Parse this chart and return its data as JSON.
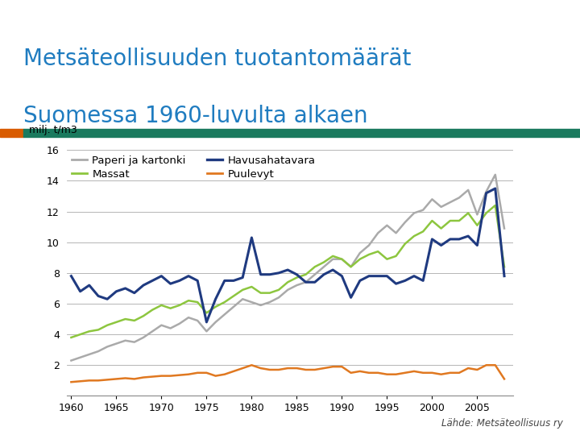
{
  "title_line1": "Metsäteollisuuden tuotantomäärät",
  "title_line2": "Suomessa 1960-luvulta alkaen",
  "title_color": "#1F7CC0",
  "ylabel": "milj. t/m3",
  "source": "Lähde: Metsäteollisuus ry",
  "orange_bar_width": 0.045,
  "teal_color": "#1A7A5E",
  "orange_color": "#D95B00",
  "years": [
    1960,
    1961,
    1962,
    1963,
    1964,
    1965,
    1966,
    1967,
    1968,
    1969,
    1970,
    1971,
    1972,
    1973,
    1974,
    1975,
    1976,
    1977,
    1978,
    1979,
    1980,
    1981,
    1982,
    1983,
    1984,
    1985,
    1986,
    1987,
    1988,
    1989,
    1990,
    1991,
    1992,
    1993,
    1994,
    1995,
    1996,
    1997,
    1998,
    1999,
    2000,
    2001,
    2002,
    2003,
    2004,
    2005,
    2006,
    2007,
    2008
  ],
  "paperi": [
    2.3,
    2.5,
    2.7,
    2.9,
    3.2,
    3.4,
    3.6,
    3.5,
    3.8,
    4.2,
    4.6,
    4.4,
    4.7,
    5.1,
    4.9,
    4.2,
    4.8,
    5.3,
    5.8,
    6.3,
    6.1,
    5.9,
    6.1,
    6.4,
    6.9,
    7.2,
    7.4,
    7.9,
    8.4,
    8.9,
    8.9,
    8.4,
    9.3,
    9.8,
    10.6,
    11.1,
    10.6,
    11.3,
    11.9,
    12.1,
    12.8,
    12.3,
    12.6,
    12.9,
    13.4,
    11.8,
    13.3,
    14.4,
    10.9
  ],
  "massat": [
    3.8,
    4.0,
    4.2,
    4.3,
    4.6,
    4.8,
    5.0,
    4.9,
    5.2,
    5.6,
    5.9,
    5.7,
    5.9,
    6.2,
    6.1,
    5.4,
    5.8,
    6.1,
    6.5,
    6.9,
    7.1,
    6.7,
    6.7,
    6.9,
    7.4,
    7.7,
    7.9,
    8.4,
    8.7,
    9.1,
    8.9,
    8.4,
    8.9,
    9.2,
    9.4,
    8.9,
    9.1,
    9.9,
    10.4,
    10.7,
    11.4,
    10.9,
    11.4,
    11.4,
    11.9,
    11.1,
    11.9,
    12.4,
    8.4
  ],
  "havusaha": [
    7.8,
    6.8,
    7.2,
    6.5,
    6.3,
    6.8,
    7.0,
    6.7,
    7.2,
    7.5,
    7.8,
    7.3,
    7.5,
    7.8,
    7.5,
    4.8,
    6.3,
    7.5,
    7.5,
    7.7,
    10.3,
    7.9,
    7.9,
    8.0,
    8.2,
    7.9,
    7.4,
    7.4,
    7.9,
    8.2,
    7.8,
    6.4,
    7.5,
    7.8,
    7.8,
    7.8,
    7.3,
    7.5,
    7.8,
    7.5,
    10.2,
    9.8,
    10.2,
    10.2,
    10.4,
    9.8,
    13.2,
    13.5,
    7.8
  ],
  "puulevyt": [
    0.9,
    0.95,
    1.0,
    1.0,
    1.05,
    1.1,
    1.15,
    1.1,
    1.2,
    1.25,
    1.3,
    1.3,
    1.35,
    1.4,
    1.5,
    1.5,
    1.3,
    1.4,
    1.6,
    1.8,
    2.0,
    1.8,
    1.7,
    1.7,
    1.8,
    1.8,
    1.7,
    1.7,
    1.8,
    1.9,
    1.9,
    1.5,
    1.6,
    1.5,
    1.5,
    1.4,
    1.4,
    1.5,
    1.6,
    1.5,
    1.5,
    1.4,
    1.5,
    1.5,
    1.8,
    1.7,
    2.0,
    2.0,
    1.1
  ],
  "paperi_color": "#AAAAAA",
  "massat_color": "#8DC63F",
  "havusaha_color": "#1F3A80",
  "puulevyt_color": "#E07820",
  "ylim": [
    0,
    16
  ],
  "yticks": [
    2,
    4,
    6,
    8,
    10,
    12,
    14,
    16
  ],
  "xtick_start": 1960,
  "xtick_end": 2005,
  "xtick_step": 5,
  "bg_color": "#FFFFFF",
  "plot_bg_color": "#FFFFFF",
  "grid_color": "#AAAAAA",
  "line_width": 1.8,
  "legend_fontsize": 9.5,
  "axis_fontsize": 9
}
